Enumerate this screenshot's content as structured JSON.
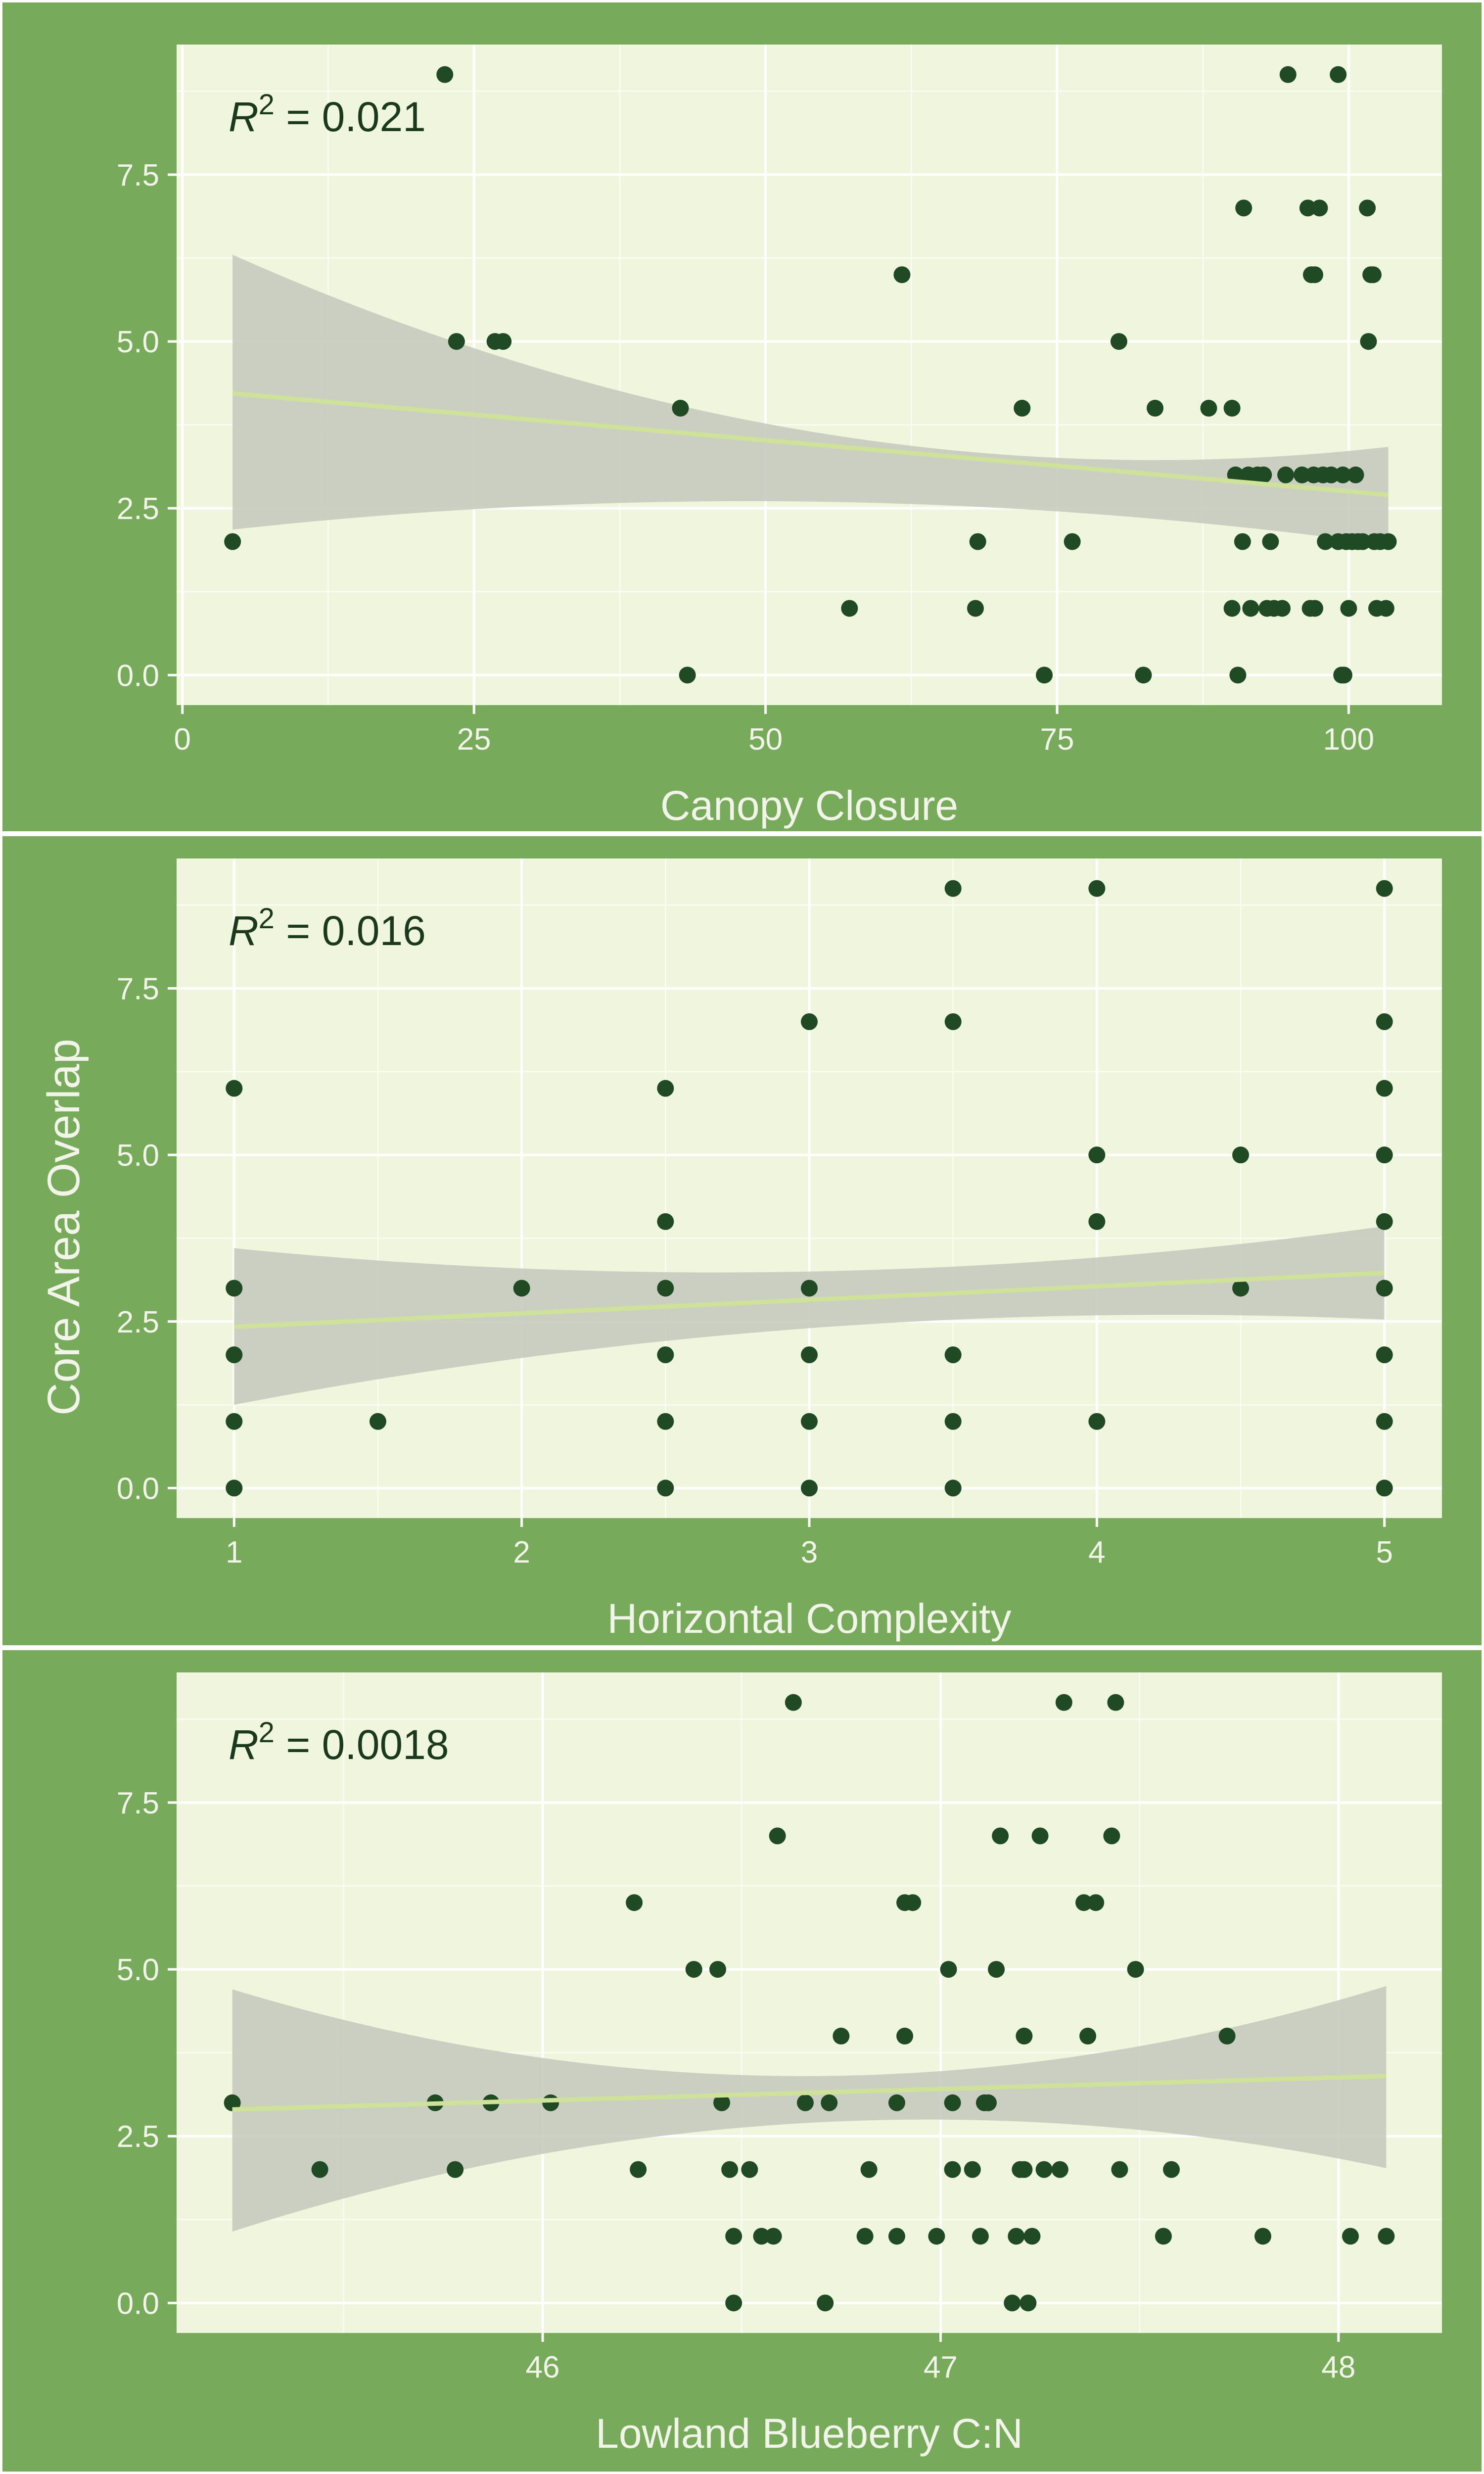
{
  "shared_ylabel": "Core Area Overlap",
  "colors": {
    "outer_panel": "#78aa5c",
    "plot_bg": "#f0f5dd",
    "gridline": "#ffffff",
    "points": "#1f4a24",
    "fit_line": "#cfe29a",
    "ci_band": "#c6cbbf",
    "tick_text": "#f2f4ea",
    "annotation_text": "#1b3a1d"
  },
  "chart_data": [
    {
      "type": "scatter",
      "title": "",
      "xlabel": "Canopy Closure",
      "ylabel": "Core Area Overlap",
      "annotation": {
        "r2_value": "0.021"
      },
      "xlim": [
        -0.5,
        108
      ],
      "ylim": [
        -0.45,
        9.45
      ],
      "xticks": [
        0,
        25,
        50,
        75,
        100
      ],
      "xtick_labels": [
        "0",
        "25",
        "50",
        "75",
        "100"
      ],
      "yticks": [
        0,
        2.5,
        5,
        7.5
      ],
      "ytick_labels": [
        "0.0",
        "2.5",
        "5.0",
        "7.5"
      ],
      "grid": true,
      "fit": {
        "x": [
          4.3,
          103.4
        ],
        "y": [
          4.22,
          2.7
        ],
        "ci_upper": [
          6.3,
          3.42
        ],
        "ci_lower": [
          2.18,
          1.95
        ],
        "ci_mid_upper": 3.65,
        "ci_mid_lower": 2.6
      },
      "points": [
        {
          "x": 4.3,
          "y": 2
        },
        {
          "x": 22.5,
          "y": 9
        },
        {
          "x": 23.5,
          "y": 5
        },
        {
          "x": 26.8,
          "y": 5
        },
        {
          "x": 27.5,
          "y": 5
        },
        {
          "x": 42.7,
          "y": 4
        },
        {
          "x": 43.3,
          "y": 0
        },
        {
          "x": 57.2,
          "y": 1
        },
        {
          "x": 61.7,
          "y": 6
        },
        {
          "x": 68.0,
          "y": 1
        },
        {
          "x": 68.2,
          "y": 2
        },
        {
          "x": 72.0,
          "y": 4
        },
        {
          "x": 73.9,
          "y": 0
        },
        {
          "x": 76.3,
          "y": 2
        },
        {
          "x": 80.3,
          "y": 5
        },
        {
          "x": 82.4,
          "y": 0
        },
        {
          "x": 83.4,
          "y": 4
        },
        {
          "x": 88.0,
          "y": 4
        },
        {
          "x": 90.0,
          "y": 4
        },
        {
          "x": 90.0,
          "y": 1
        },
        {
          "x": 90.3,
          "y": 3
        },
        {
          "x": 90.5,
          "y": 0
        },
        {
          "x": 90.9,
          "y": 2
        },
        {
          "x": 91.0,
          "y": 7
        },
        {
          "x": 91.4,
          "y": 3
        },
        {
          "x": 91.6,
          "y": 1
        },
        {
          "x": 92.2,
          "y": 3
        },
        {
          "x": 92.7,
          "y": 3
        },
        {
          "x": 93.0,
          "y": 1
        },
        {
          "x": 93.3,
          "y": 2
        },
        {
          "x": 93.6,
          "y": 1
        },
        {
          "x": 94.3,
          "y": 1
        },
        {
          "x": 94.6,
          "y": 3
        },
        {
          "x": 94.8,
          "y": 9
        },
        {
          "x": 96.0,
          "y": 3
        },
        {
          "x": 96.5,
          "y": 7
        },
        {
          "x": 96.7,
          "y": 1
        },
        {
          "x": 96.8,
          "y": 6
        },
        {
          "x": 97.0,
          "y": 3
        },
        {
          "x": 97.1,
          "y": 6
        },
        {
          "x": 97.1,
          "y": 1
        },
        {
          "x": 97.5,
          "y": 7
        },
        {
          "x": 97.8,
          "y": 3
        },
        {
          "x": 98.0,
          "y": 2
        },
        {
          "x": 98.5,
          "y": 3
        },
        {
          "x": 99.1,
          "y": 9
        },
        {
          "x": 99.1,
          "y": 2
        },
        {
          "x": 99.4,
          "y": 0
        },
        {
          "x": 99.5,
          "y": 3
        },
        {
          "x": 99.6,
          "y": 0
        },
        {
          "x": 99.8,
          "y": 2
        },
        {
          "x": 100.0,
          "y": 1
        },
        {
          "x": 100.3,
          "y": 2
        },
        {
          "x": 100.6,
          "y": 3
        },
        {
          "x": 100.8,
          "y": 2
        },
        {
          "x": 101.2,
          "y": 2
        },
        {
          "x": 101.6,
          "y": 7
        },
        {
          "x": 101.7,
          "y": 5
        },
        {
          "x": 101.9,
          "y": 6
        },
        {
          "x": 102.1,
          "y": 6
        },
        {
          "x": 102.2,
          "y": 2
        },
        {
          "x": 102.4,
          "y": 1
        },
        {
          "x": 102.7,
          "y": 2
        },
        {
          "x": 103.2,
          "y": 1
        },
        {
          "x": 103.4,
          "y": 2
        }
      ]
    },
    {
      "type": "scatter",
      "title": "",
      "xlabel": "Horizontal Complexity",
      "ylabel": "Core Area Overlap",
      "annotation": {
        "r2_value": "0.016"
      },
      "xlim": [
        0.8,
        5.2
      ],
      "ylim": [
        -0.45,
        9.45
      ],
      "xticks": [
        1,
        2,
        3,
        4,
        5
      ],
      "xtick_labels": [
        "1",
        "2",
        "3",
        "4",
        "5"
      ],
      "yticks": [
        0,
        2.5,
        5,
        7.5
      ],
      "ytick_labels": [
        "0.0",
        "2.5",
        "5.0",
        "7.5"
      ],
      "grid": true,
      "fit": {
        "x": [
          1,
          5
        ],
        "y": [
          2.42,
          3.23
        ],
        "ci_upper": [
          3.6,
          3.93
        ],
        "ci_lower": [
          1.25,
          2.53
        ],
        "ci_mid_upper": 3.25,
        "ci_mid_lower": 2.4
      },
      "points": [
        {
          "x": 1,
          "y": 6
        },
        {
          "x": 1,
          "y": 3
        },
        {
          "x": 1,
          "y": 2
        },
        {
          "x": 1,
          "y": 1
        },
        {
          "x": 1,
          "y": 0
        },
        {
          "x": 1.5,
          "y": 1
        },
        {
          "x": 2,
          "y": 3
        },
        {
          "x": 2.5,
          "y": 6
        },
        {
          "x": 2.5,
          "y": 4
        },
        {
          "x": 2.5,
          "y": 3
        },
        {
          "x": 2.5,
          "y": 2
        },
        {
          "x": 2.5,
          "y": 1
        },
        {
          "x": 2.5,
          "y": 0
        },
        {
          "x": 3,
          "y": 7
        },
        {
          "x": 3,
          "y": 3
        },
        {
          "x": 3,
          "y": 2
        },
        {
          "x": 3,
          "y": 1
        },
        {
          "x": 3,
          "y": 0
        },
        {
          "x": 3.5,
          "y": 9
        },
        {
          "x": 3.5,
          "y": 7
        },
        {
          "x": 3.5,
          "y": 2
        },
        {
          "x": 3.5,
          "y": 1
        },
        {
          "x": 3.5,
          "y": 0
        },
        {
          "x": 4,
          "y": 9
        },
        {
          "x": 4,
          "y": 5
        },
        {
          "x": 4,
          "y": 4
        },
        {
          "x": 4,
          "y": 1
        },
        {
          "x": 4.5,
          "y": 5
        },
        {
          "x": 4.5,
          "y": 3
        },
        {
          "x": 5,
          "y": 9
        },
        {
          "x": 5,
          "y": 7
        },
        {
          "x": 5,
          "y": 6
        },
        {
          "x": 5,
          "y": 5
        },
        {
          "x": 5,
          "y": 4
        },
        {
          "x": 5,
          "y": 3
        },
        {
          "x": 5,
          "y": 2
        },
        {
          "x": 5,
          "y": 1
        },
        {
          "x": 5,
          "y": 0
        }
      ]
    },
    {
      "type": "scatter",
      "title": "",
      "xlabel": "Lowland Blueberry C:N",
      "ylabel": "Core Area Overlap",
      "annotation": {
        "r2_value": "0.0018"
      },
      "xlim": [
        45.08,
        48.26
      ],
      "ylim": [
        -0.45,
        9.45
      ],
      "xticks": [
        46,
        47,
        48
      ],
      "xtick_labels": [
        "46",
        "47",
        "48"
      ],
      "yticks": [
        0,
        2.5,
        5,
        7.5
      ],
      "ytick_labels": [
        "0.0",
        "2.5",
        "5.0",
        "7.5"
      ],
      "grid": true,
      "fit": {
        "x": [
          45.22,
          48.12
        ],
        "y": [
          2.9,
          3.4
        ],
        "ci_upper": [
          4.7,
          4.75
        ],
        "ci_lower": [
          1.07,
          2.02
        ],
        "ci_mid_upper": 3.4,
        "ci_mid_lower": 2.7
      },
      "points": [
        {
          "x": 45.22,
          "y": 3
        },
        {
          "x": 45.44,
          "y": 2
        },
        {
          "x": 45.73,
          "y": 3
        },
        {
          "x": 45.78,
          "y": 2
        },
        {
          "x": 45.87,
          "y": 3
        },
        {
          "x": 46.02,
          "y": 3
        },
        {
          "x": 46.23,
          "y": 6
        },
        {
          "x": 46.24,
          "y": 2
        },
        {
          "x": 46.38,
          "y": 5
        },
        {
          "x": 46.44,
          "y": 5
        },
        {
          "x": 46.45,
          "y": 3
        },
        {
          "x": 46.47,
          "y": 2
        },
        {
          "x": 46.48,
          "y": 1
        },
        {
          "x": 46.48,
          "y": 0
        },
        {
          "x": 46.52,
          "y": 2
        },
        {
          "x": 46.55,
          "y": 1
        },
        {
          "x": 46.58,
          "y": 1
        },
        {
          "x": 46.59,
          "y": 7
        },
        {
          "x": 46.63,
          "y": 9
        },
        {
          "x": 46.66,
          "y": 3
        },
        {
          "x": 46.71,
          "y": 0
        },
        {
          "x": 46.72,
          "y": 3
        },
        {
          "x": 46.75,
          "y": 4
        },
        {
          "x": 46.81,
          "y": 1
        },
        {
          "x": 46.82,
          "y": 2
        },
        {
          "x": 46.89,
          "y": 3
        },
        {
          "x": 46.89,
          "y": 1
        },
        {
          "x": 46.91,
          "y": 4
        },
        {
          "x": 46.91,
          "y": 6
        },
        {
          "x": 46.93,
          "y": 6
        },
        {
          "x": 46.99,
          "y": 1
        },
        {
          "x": 47.02,
          "y": 5
        },
        {
          "x": 47.03,
          "y": 3
        },
        {
          "x": 47.03,
          "y": 2
        },
        {
          "x": 47.08,
          "y": 2
        },
        {
          "x": 47.1,
          "y": 1
        },
        {
          "x": 47.11,
          "y": 3
        },
        {
          "x": 47.12,
          "y": 3
        },
        {
          "x": 47.14,
          "y": 5
        },
        {
          "x": 47.15,
          "y": 7
        },
        {
          "x": 47.18,
          "y": 0
        },
        {
          "x": 47.19,
          "y": 1
        },
        {
          "x": 47.2,
          "y": 2
        },
        {
          "x": 47.21,
          "y": 4
        },
        {
          "x": 47.21,
          "y": 2
        },
        {
          "x": 47.22,
          "y": 0
        },
        {
          "x": 47.23,
          "y": 1
        },
        {
          "x": 47.25,
          "y": 7
        },
        {
          "x": 47.26,
          "y": 2
        },
        {
          "x": 47.3,
          "y": 2
        },
        {
          "x": 47.31,
          "y": 9
        },
        {
          "x": 47.36,
          "y": 6
        },
        {
          "x": 47.37,
          "y": 4
        },
        {
          "x": 47.39,
          "y": 6
        },
        {
          "x": 47.43,
          "y": 7
        },
        {
          "x": 47.44,
          "y": 9
        },
        {
          "x": 47.45,
          "y": 2
        },
        {
          "x": 47.49,
          "y": 5
        },
        {
          "x": 47.56,
          "y": 1
        },
        {
          "x": 47.58,
          "y": 2
        },
        {
          "x": 47.72,
          "y": 4
        },
        {
          "x": 47.81,
          "y": 1
        },
        {
          "x": 48.03,
          "y": 1
        },
        {
          "x": 48.12,
          "y": 1
        }
      ]
    }
  ]
}
